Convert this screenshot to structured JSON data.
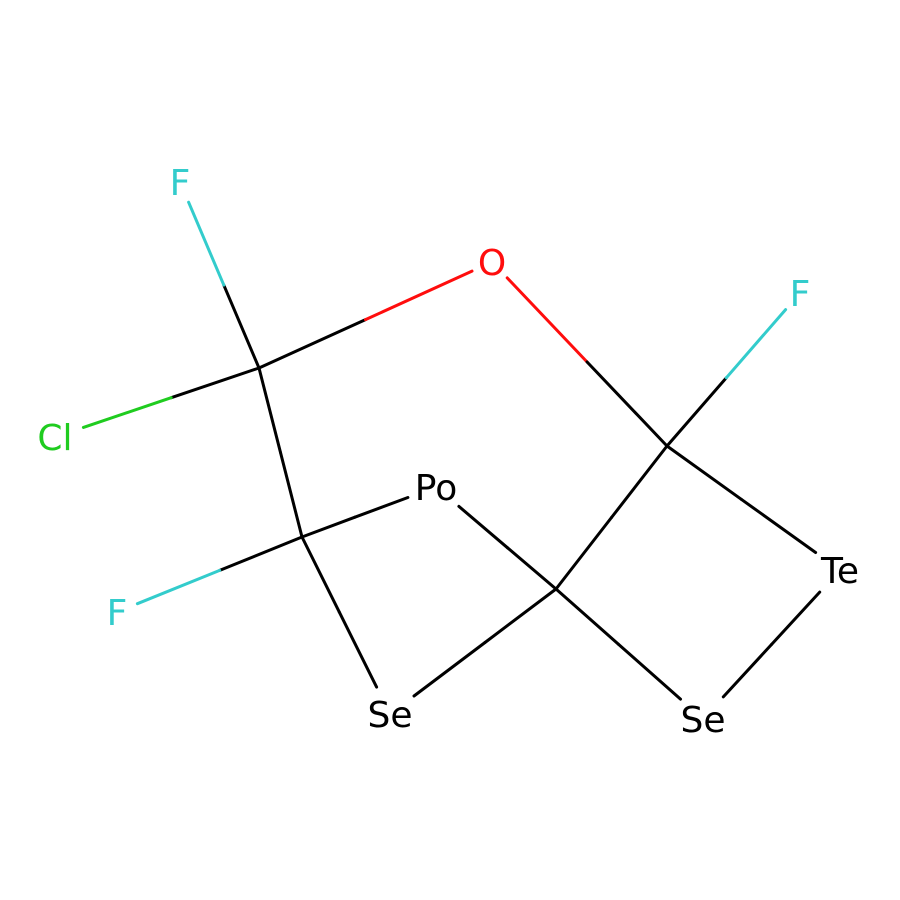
{
  "molecule": {
    "atoms": [
      {
        "id": "f1",
        "label": "F",
        "color": "#33CCCC"
      },
      {
        "id": "o",
        "label": "O",
        "color": "#FF0D0D"
      },
      {
        "id": "f2",
        "label": "F",
        "color": "#33CCCC"
      },
      {
        "id": "cl",
        "label": "Cl",
        "color": "#1FCC1F"
      },
      {
        "id": "po",
        "label": "Po",
        "color": "#000000"
      },
      {
        "id": "te",
        "label": "Te",
        "color": "#000000"
      },
      {
        "id": "f3",
        "label": "F",
        "color": "#33CCCC"
      },
      {
        "id": "se1",
        "label": "Se",
        "color": "#000000"
      },
      {
        "id": "se2",
        "label": "Se",
        "color": "#000000"
      },
      {
        "id": "c1",
        "label": "",
        "color": "#000000"
      },
      {
        "id": "c2",
        "label": "",
        "color": "#000000"
      },
      {
        "id": "c3",
        "label": "",
        "color": "#000000"
      },
      {
        "id": "c4",
        "label": "",
        "color": "#000000"
      }
    ],
    "bonds": [
      {
        "id": "c1-f1",
        "from": "c1",
        "to": "f1"
      },
      {
        "id": "c1-o",
        "from": "c1",
        "to": "o"
      },
      {
        "id": "c1-cl",
        "from": "c1",
        "to": "cl"
      },
      {
        "id": "c1-c2",
        "from": "c1",
        "to": "c2"
      },
      {
        "id": "o-c3",
        "from": "o",
        "to": "c3"
      },
      {
        "id": "c3-f2",
        "from": "c3",
        "to": "f2"
      },
      {
        "id": "c3-te",
        "from": "c3",
        "to": "te"
      },
      {
        "id": "c3-c4",
        "from": "c3",
        "to": "c4"
      },
      {
        "id": "c2-po",
        "from": "c2",
        "to": "po"
      },
      {
        "id": "c2-f3",
        "from": "c2",
        "to": "f3"
      },
      {
        "id": "c2-se1",
        "from": "c2",
        "to": "se1"
      },
      {
        "id": "po-c4",
        "from": "po",
        "to": "c4"
      },
      {
        "id": "se1-c4",
        "from": "se1",
        "to": "c4"
      },
      {
        "id": "c4-se2",
        "from": "c4",
        "to": "se2"
      },
      {
        "id": "se2-te",
        "from": "se2",
        "to": "te"
      }
    ]
  }
}
